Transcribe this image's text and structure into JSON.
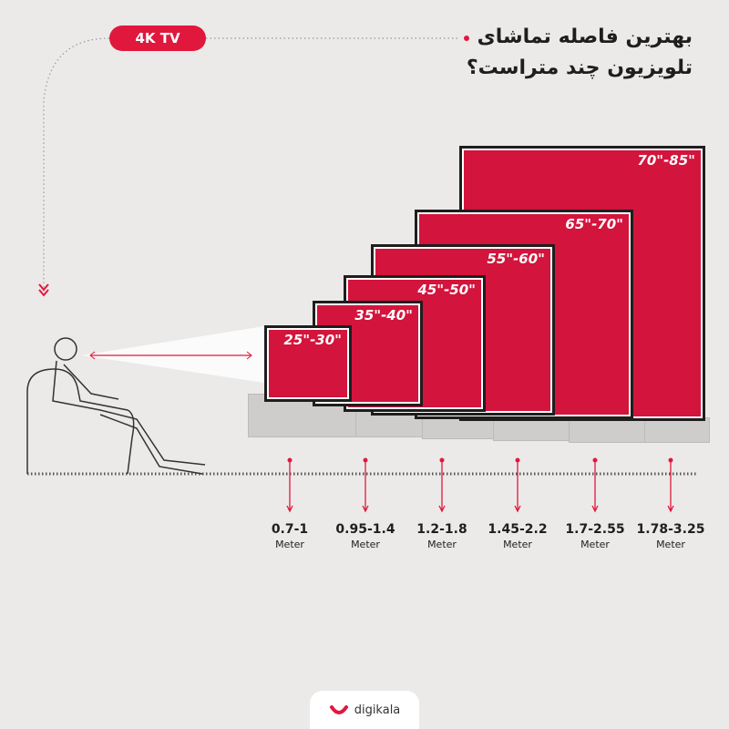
{
  "badge": "4K TV",
  "title": {
    "line1": "بهترین فاصله تماشای",
    "line2": "تلویزیون چند متراست؟"
  },
  "tvs": [
    {
      "size": "25\"-30\"",
      "distance": "0.7-1",
      "unit": "Meter"
    },
    {
      "size": "35\"-40\"",
      "distance": "0.95-1.4",
      "unit": "Meter"
    },
    {
      "size": "45\"-50\"",
      "distance": "1.2-1.8",
      "unit": "Meter"
    },
    {
      "size": "55\"-60\"",
      "distance": "1.45-2.2",
      "unit": "Meter"
    },
    {
      "size": "65\"-70\"",
      "distance": "1.7-2.55",
      "unit": "Meter"
    },
    {
      "size": "70\"-85\"",
      "distance": "1.78-3.25",
      "unit": "Meter"
    }
  ],
  "brand": "digikala",
  "colors": {
    "accent": "#e0183d",
    "tv": "#d3143c",
    "background": "#eceae8"
  }
}
